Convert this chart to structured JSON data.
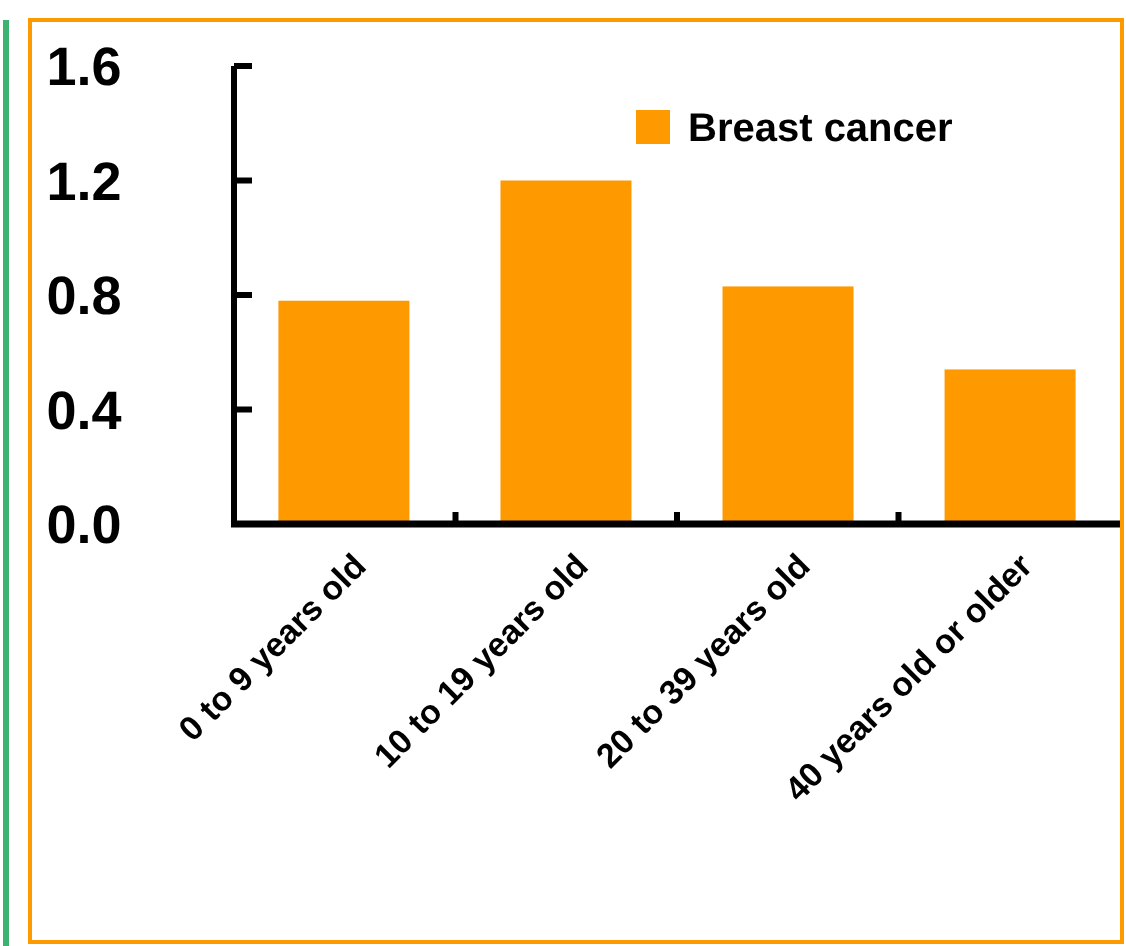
{
  "chart_data": {
    "type": "bar",
    "categories": [
      "0 to 9 years old",
      "10 to 19 years old",
      "20 to 39 years old",
      "40 years old or older"
    ],
    "series": [
      {
        "name": "Breast cancer",
        "color": "#ff9900",
        "values": [
          0.78,
          1.2,
          0.83,
          0.54
        ]
      }
    ],
    "ylim": [
      0,
      1.6
    ],
    "yticks": [
      {
        "value": 0,
        "label": "0.0"
      },
      {
        "value": 0.4,
        "label": "0.4"
      },
      {
        "value": 0.8,
        "label": "0.8"
      },
      {
        "value": 1.2,
        "label": "1.2"
      },
      {
        "value": 1.6,
        "label": "1.6"
      }
    ],
    "legend": "top right",
    "grid": false
  }
}
